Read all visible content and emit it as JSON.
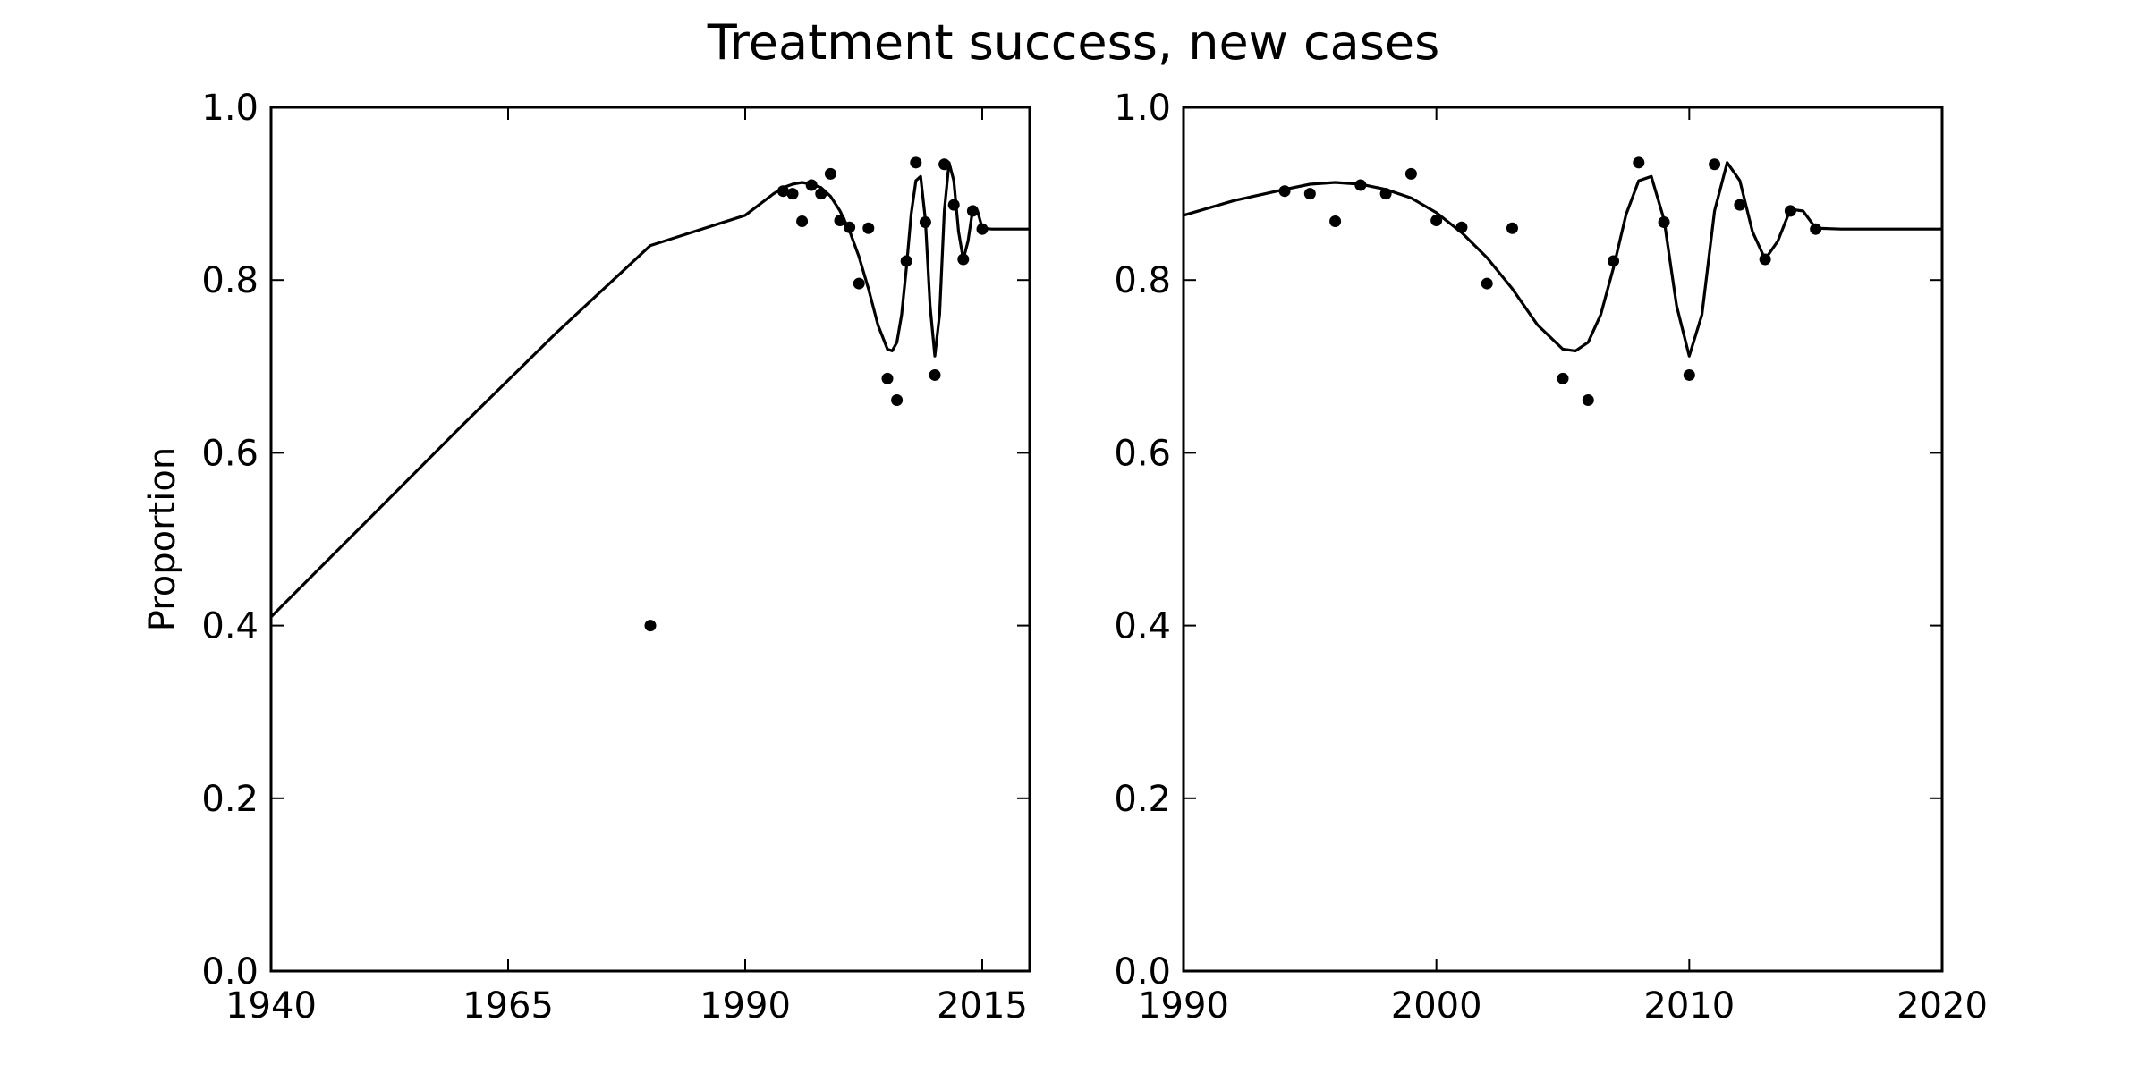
{
  "figure": {
    "title": "Treatment success, new cases"
  },
  "chart_data": [
    {
      "type": "scatter",
      "title": "",
      "xlabel": "",
      "ylabel": "Proportion",
      "xlim": [
        1940,
        2020
      ],
      "ylim": [
        0.0,
        1.0
      ],
      "x_ticks": [
        1940,
        1965,
        1990,
        2015
      ],
      "y_ticks": [
        0.0,
        0.2,
        0.4,
        0.6,
        0.8,
        1.0
      ],
      "grid": false,
      "series": [
        {
          "kind": "points",
          "x": [
            1980,
            1994,
            1995,
            1996,
            1997,
            1998,
            1999,
            2000,
            2001,
            2002,
            2003,
            2005,
            2006,
            2007,
            2008,
            2009,
            2010,
            2011,
            2012,
            2013,
            2014,
            2015
          ],
          "y": [
            0.4,
            0.903,
            0.9,
            0.868,
            0.91,
            0.9,
            0.923,
            0.869,
            0.861,
            0.796,
            0.86,
            0.686,
            0.661,
            0.822,
            0.936,
            0.867,
            0.69,
            0.934,
            0.887,
            0.824,
            0.88,
            0.859
          ]
        },
        {
          "kind": "fit-line",
          "x": [
            1940,
            1950,
            1960,
            1970,
            1980,
            1990,
            1993,
            1994,
            1995,
            1996,
            1997,
            1998,
            1999,
            2000,
            2001,
            2002,
            2003,
            2004,
            2005,
            2005.5,
            2006,
            2006.5,
            2007,
            2007.5,
            2008,
            2008.5,
            2009,
            2009.5,
            2010,
            2010.5,
            2011,
            2011.5,
            2012,
            2012.5,
            2013,
            2013.5,
            2014,
            2014.5,
            2015,
            2016,
            2018,
            2020
          ],
          "y": [
            0.41,
            0.52,
            0.63,
            0.738,
            0.84,
            0.875,
            0.9,
            0.907,
            0.911,
            0.913,
            0.911,
            0.907,
            0.897,
            0.88,
            0.857,
            0.827,
            0.79,
            0.748,
            0.72,
            0.718,
            0.728,
            0.76,
            0.814,
            0.876,
            0.915,
            0.92,
            0.87,
            0.77,
            0.712,
            0.76,
            0.88,
            0.936,
            0.915,
            0.856,
            0.824,
            0.845,
            0.882,
            0.88,
            0.86,
            0.859,
            0.859,
            0.859
          ]
        }
      ]
    },
    {
      "type": "scatter",
      "title": "",
      "xlabel": "",
      "ylabel": "",
      "xlim": [
        1990,
        2020
      ],
      "ylim": [
        0.0,
        1.0
      ],
      "x_ticks": [
        1990,
        2000,
        2010,
        2020
      ],
      "y_ticks": [
        0.0,
        0.2,
        0.4,
        0.6,
        0.8,
        1.0
      ],
      "grid": false,
      "series": [
        {
          "kind": "points",
          "x": [
            1994,
            1995,
            1996,
            1997,
            1998,
            1999,
            2000,
            2001,
            2002,
            2003,
            2005,
            2006,
            2007,
            2008,
            2009,
            2010,
            2011,
            2012,
            2013,
            2014,
            2015
          ],
          "y": [
            0.903,
            0.9,
            0.868,
            0.91,
            0.9,
            0.923,
            0.869,
            0.861,
            0.796,
            0.86,
            0.686,
            0.661,
            0.822,
            0.936,
            0.867,
            0.69,
            0.934,
            0.887,
            0.824,
            0.88,
            0.859
          ]
        },
        {
          "kind": "fit-line",
          "x": [
            1990,
            1992,
            1994,
            1995,
            1996,
            1997,
            1998,
            1999,
            2000,
            2001,
            2002,
            2003,
            2004,
            2005,
            2005.5,
            2006,
            2006.5,
            2007,
            2007.5,
            2008,
            2008.5,
            2009,
            2009.5,
            2010,
            2010.5,
            2011,
            2011.5,
            2012,
            2012.5,
            2013,
            2013.5,
            2014,
            2014.5,
            2015,
            2016,
            2018,
            2020
          ],
          "y": [
            0.875,
            0.892,
            0.905,
            0.911,
            0.913,
            0.911,
            0.905,
            0.895,
            0.878,
            0.855,
            0.826,
            0.79,
            0.748,
            0.72,
            0.718,
            0.728,
            0.76,
            0.814,
            0.876,
            0.915,
            0.92,
            0.87,
            0.77,
            0.712,
            0.76,
            0.88,
            0.936,
            0.915,
            0.856,
            0.824,
            0.845,
            0.882,
            0.88,
            0.86,
            0.859,
            0.859,
            0.859
          ]
        }
      ]
    }
  ]
}
